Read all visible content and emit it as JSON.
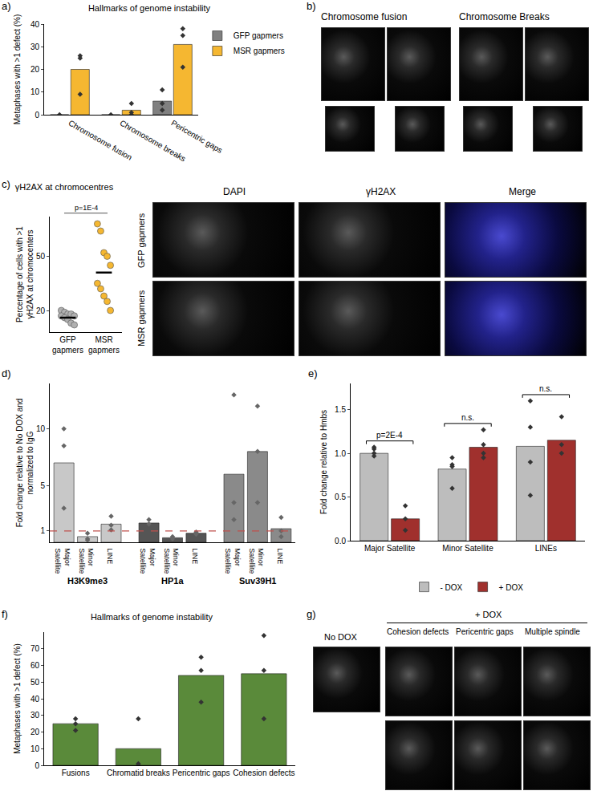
{
  "chart_data": [
    {
      "panel": "a)",
      "type": "bar",
      "title": "Hallmarks of genome instability",
      "y_label": "Metaphases with >1 defect (%)",
      "categories": [
        "Chromosome fusion",
        "Chromosome breaks",
        "Pericentric gaps"
      ],
      "series": [
        {
          "name": "GFP gapmers",
          "color": "#808080",
          "values": [
            0,
            0,
            6
          ],
          "points": [
            [
              0
            ],
            [
              0
            ],
            [
              2,
              5,
              11
            ]
          ]
        },
        {
          "name": "MSR gapmers",
          "color": "#f5b731",
          "values": [
            20,
            2,
            31
          ],
          "points": [
            [
              26,
              25,
              9
            ],
            [
              5,
              1,
              0
            ],
            [
              38,
              35,
              21
            ]
          ]
        }
      ],
      "ylim": [
        0,
        40
      ],
      "yticks": [
        0,
        10,
        20,
        30,
        40
      ],
      "legend": "right",
      "marker": "diamond"
    },
    {
      "panel": "c)",
      "type": "strip",
      "title": "γH2AX at chromocentres",
      "y_label": [
        "Percentage of cells with >1",
        "γH2AX at chromocenters"
      ],
      "categories": [
        "GFP gapmers",
        "MSR gapmers"
      ],
      "colors": [
        "#b0b0b0",
        "#f5b731"
      ],
      "points": [
        [
          20,
          19,
          18,
          18,
          17,
          17,
          16,
          15,
          13,
          12
        ],
        [
          68,
          64,
          52,
          50,
          45,
          35,
          32,
          28,
          25,
          20
        ]
      ],
      "means": [
        16,
        41
      ],
      "annotation": "p=1E-4",
      "ylim": [
        8,
        72
      ],
      "yticks": [
        20,
        50
      ]
    },
    {
      "panel": "d)",
      "type": "grouped_bar",
      "y_label": [
        "Fold change relative to No DOX and",
        "normalized to IgG"
      ],
      "categories": [
        "Major Satellite",
        "Minor Satellite",
        "LINE"
      ],
      "groups": [
        {
          "name": "H3K9me3",
          "color": "#c8c8c8",
          "values": [
            7,
            0.5,
            1.6
          ],
          "points": [
            [
              10,
              8.5,
              3
            ],
            [
              0.8,
              0.3,
              0.2
            ],
            [
              2.3,
              1.5,
              1.1
            ]
          ]
        },
        {
          "name": "HP1a",
          "color": "#555555",
          "values": [
            1.7,
            0.4,
            0.8
          ],
          "points": [
            [
              2.0,
              1.6
            ],
            [
              0.5,
              0.3
            ],
            [
              0.8,
              0.9,
              0.7
            ]
          ]
        },
        {
          "name": "Suv39H1",
          "color": "#8a8a8a",
          "values": [
            6,
            8,
            1.2
          ],
          "points": [
            [
              13,
              3.5,
              2
            ],
            [
              12,
              8,
              3.5
            ],
            [
              2.2,
              1,
              0.5
            ]
          ]
        }
      ],
      "reference_line": 1,
      "ylim": [
        0,
        14
      ],
      "yticks": [
        1,
        5,
        10
      ],
      "marker": "diamond"
    },
    {
      "panel": "e)",
      "type": "bar",
      "y_label": "Fold change relative to Hmbs",
      "categories": [
        "Major Satellite",
        "Minor Satellite",
        "LINEs"
      ],
      "series": [
        {
          "name": "- DOX",
          "color": "#bdbdbd",
          "values": [
            1.0,
            0.82,
            1.08
          ],
          "points": [
            [
              1.05,
              1.0,
              0.97,
              1.07
            ],
            [
              0.95,
              0.85,
              0.6,
              0.87
            ],
            [
              1.6,
              1.3,
              0.9,
              0.52
            ]
          ]
        },
        {
          "name": "+ DOX",
          "color": "#a0302d",
          "values": [
            0.25,
            1.07,
            1.15
          ],
          "points": [
            [
              0.4,
              0.25,
              0.12
            ],
            [
              1.27,
              1.1,
              1.0,
              0.95
            ],
            [
              1.42,
              1.1,
              1.0
            ]
          ]
        }
      ],
      "comparisons": [
        {
          "category": "Major Satellite",
          "text": "p=2E-4"
        },
        {
          "category": "Minor Satellite",
          "text": "n.s."
        },
        {
          "category": "LINEs",
          "text": "n.s."
        }
      ],
      "ylim": [
        0,
        1.8
      ],
      "yticks": [
        {
          "value": 0,
          "label": "0.0"
        },
        {
          "value": 0.5,
          "label": "0.5"
        },
        {
          "value": 1,
          "label": "1.0"
        },
        {
          "value": 1.5,
          "label": "1.5"
        }
      ],
      "legend": "bottom",
      "marker": "diamond"
    },
    {
      "panel": "f)",
      "type": "bar",
      "title": "Hallmarks of genome instability",
      "y_label": "Metaphases with >1 defect (%)",
      "categories": [
        "Fusions",
        "Chromatid breaks",
        "Pericentric gaps",
        "Cohesion defects"
      ],
      "color": "#5a8a3a",
      "values": [
        25,
        10,
        54,
        55
      ],
      "points": [
        [
          28,
          25,
          21
        ],
        [
          28,
          1,
          0
        ],
        [
          65,
          57,
          38
        ],
        [
          78,
          57,
          28
        ]
      ],
      "ylim": [
        0,
        80
      ],
      "yticks": [
        0,
        10,
        20,
        30,
        40,
        50,
        60,
        70
      ],
      "marker": "diamond"
    }
  ],
  "image_panels": {
    "b": {
      "panel": "b)",
      "titles": [
        "Chromosome fusion",
        "Chromosome Breaks"
      ]
    },
    "c": {
      "columns": [
        "DAPI",
        "γH2AX",
        "Merge"
      ],
      "rows": [
        "GFP gapmers",
        "MSR gapmers"
      ]
    },
    "g": {
      "panel": "g)",
      "control": "No DOX",
      "treated": "+ DOX",
      "columns": [
        "Cohesion defects",
        "Pericentric gaps",
        "Multiple spindle"
      ]
    }
  }
}
